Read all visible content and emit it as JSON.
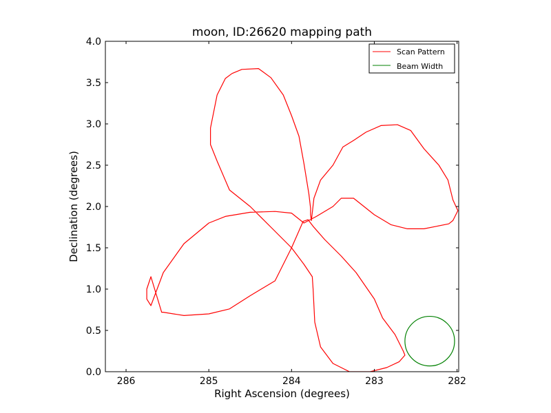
{
  "chart_data": {
    "type": "line",
    "title": "moon, ID:26620 mapping path",
    "xlabel": "Right Ascension (degrees)",
    "ylabel": "Declination (degrees)",
    "xlim": [
      286.25,
      281.98
    ],
    "ylim": [
      0.0,
      4.0
    ],
    "x_ticks": [
      286,
      285,
      284,
      283,
      282
    ],
    "x_tick_labels": [
      "286",
      "285",
      "284",
      "283",
      "282"
    ],
    "y_ticks": [
      0.0,
      0.5,
      1.0,
      1.5,
      2.0,
      2.5,
      3.0,
      3.5,
      4.0
    ],
    "y_tick_labels": [
      "0.0",
      "0.5",
      "1.0",
      "1.5",
      "2.0",
      "2.5",
      "3.0",
      "3.5",
      "4.0"
    ],
    "grid": false,
    "legend_position": "top-right",
    "series": [
      {
        "name": "Scan Pattern",
        "color": "#ff0000",
        "x": [
          284.72,
          284.6,
          284.4,
          284.25,
          284.1,
          284.0,
          283.91,
          283.85,
          283.79,
          283.77,
          283.77,
          283.76,
          283.73,
          283.65,
          283.5,
          283.38,
          283.25,
          283.1,
          282.92,
          282.72,
          282.56,
          282.4,
          282.22,
          282.11,
          282.05,
          281.99,
          282.05,
          282.1,
          282.25,
          282.4,
          282.6,
          282.8,
          283.0,
          283.25,
          283.4,
          283.5,
          283.7,
          283.85,
          284.0,
          284.2,
          284.5,
          284.8,
          285.0,
          285.3,
          285.55,
          285.7,
          285.75,
          285.75,
          285.7,
          285.57,
          285.55,
          285.3,
          285.0,
          284.75,
          284.5,
          284.2,
          284.0,
          283.86,
          283.8,
          283.74,
          283.6,
          283.4,
          283.22,
          283.0,
          282.9,
          282.75,
          282.65,
          282.63,
          282.7,
          282.85,
          283.05,
          283.3,
          283.5,
          283.65,
          283.72,
          283.73,
          283.74,
          283.75,
          283.85,
          284.0,
          284.25,
          284.5,
          284.75,
          284.9,
          284.98,
          284.98,
          284.9,
          284.8,
          284.72
        ],
        "y": [
          3.61,
          3.66,
          3.67,
          3.56,
          3.35,
          3.1,
          2.85,
          2.52,
          2.15,
          1.98,
          1.9,
          1.83,
          2.1,
          2.32,
          2.5,
          2.72,
          2.8,
          2.9,
          2.98,
          2.99,
          2.92,
          2.7,
          2.5,
          2.32,
          2.08,
          1.95,
          1.83,
          1.79,
          1.76,
          1.73,
          1.73,
          1.78,
          1.9,
          2.1,
          2.1,
          2.0,
          1.88,
          1.8,
          1.92,
          1.94,
          1.93,
          1.88,
          1.8,
          1.55,
          1.2,
          0.8,
          0.88,
          1.0,
          1.15,
          0.72,
          0.72,
          0.68,
          0.7,
          0.76,
          0.92,
          1.1,
          1.5,
          1.82,
          1.84,
          1.76,
          1.6,
          1.4,
          1.2,
          0.88,
          0.65,
          0.45,
          0.25,
          0.2,
          0.12,
          0.05,
          0.0,
          0.0,
          0.1,
          0.3,
          0.6,
          0.8,
          1.0,
          1.15,
          1.3,
          1.5,
          1.75,
          2.0,
          2.2,
          2.55,
          2.75,
          2.95,
          3.35,
          3.55,
          3.61
        ]
      },
      {
        "name": "Beam Width",
        "color": "#008000",
        "shape": "circle",
        "center": [
          282.33,
          0.37
        ],
        "radius": 0.3
      }
    ]
  }
}
